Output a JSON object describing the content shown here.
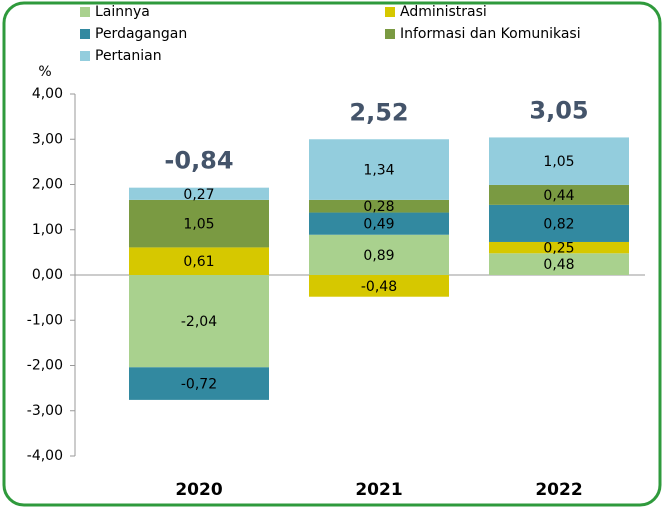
{
  "chart_data": {
    "type": "stacked-bar",
    "y_label": "%",
    "categories": [
      "2020",
      "2021",
      "2022"
    ],
    "series": [
      {
        "name": "Lainnya",
        "color": "#a9d18e",
        "values": [
          -2.04,
          0.89,
          0.48
        ],
        "value_labels": [
          "-2,04",
          "0,89",
          "0,48"
        ]
      },
      {
        "name": "Administrasi",
        "color": "#d6c800",
        "values": [
          0.61,
          -0.48,
          0.25
        ],
        "value_labels": [
          "0,61",
          "-0,48",
          "0,25"
        ]
      },
      {
        "name": "Perdagangan",
        "color": "#3289a0",
        "values": [
          -0.72,
          0.49,
          0.82
        ],
        "value_labels": [
          "-0,72",
          "0,49",
          "0,82"
        ]
      },
      {
        "name": "Informasi dan Komunikasi",
        "color": "#7a9a42",
        "values": [
          1.05,
          0.28,
          0.44
        ],
        "value_labels": [
          "1,05",
          "0,28",
          "0,44"
        ]
      },
      {
        "name": "Pertanian",
        "color": "#93cddd",
        "values": [
          0.27,
          1.34,
          1.05
        ],
        "value_labels": [
          "0,27",
          "1,34",
          "1,05"
        ]
      }
    ],
    "totals": [
      {
        "value": -0.84,
        "label": "-0,84"
      },
      {
        "value": 2.52,
        "label": "2,52"
      },
      {
        "value": 3.05,
        "label": "3,05"
      }
    ],
    "ylim": [
      -4,
      4
    ],
    "yticks": [
      {
        "value": -4,
        "label": "-4,00"
      },
      {
        "value": -3,
        "label": "-3,00"
      },
      {
        "value": -2,
        "label": "-2,00"
      },
      {
        "value": -1,
        "label": "-1,00"
      },
      {
        "value": 0,
        "label": "0,00"
      },
      {
        "value": 1,
        "label": "1,00"
      },
      {
        "value": 2,
        "label": "2,00"
      },
      {
        "value": 3,
        "label": "3,00"
      },
      {
        "value": 4,
        "label": "4,00"
      }
    ]
  }
}
